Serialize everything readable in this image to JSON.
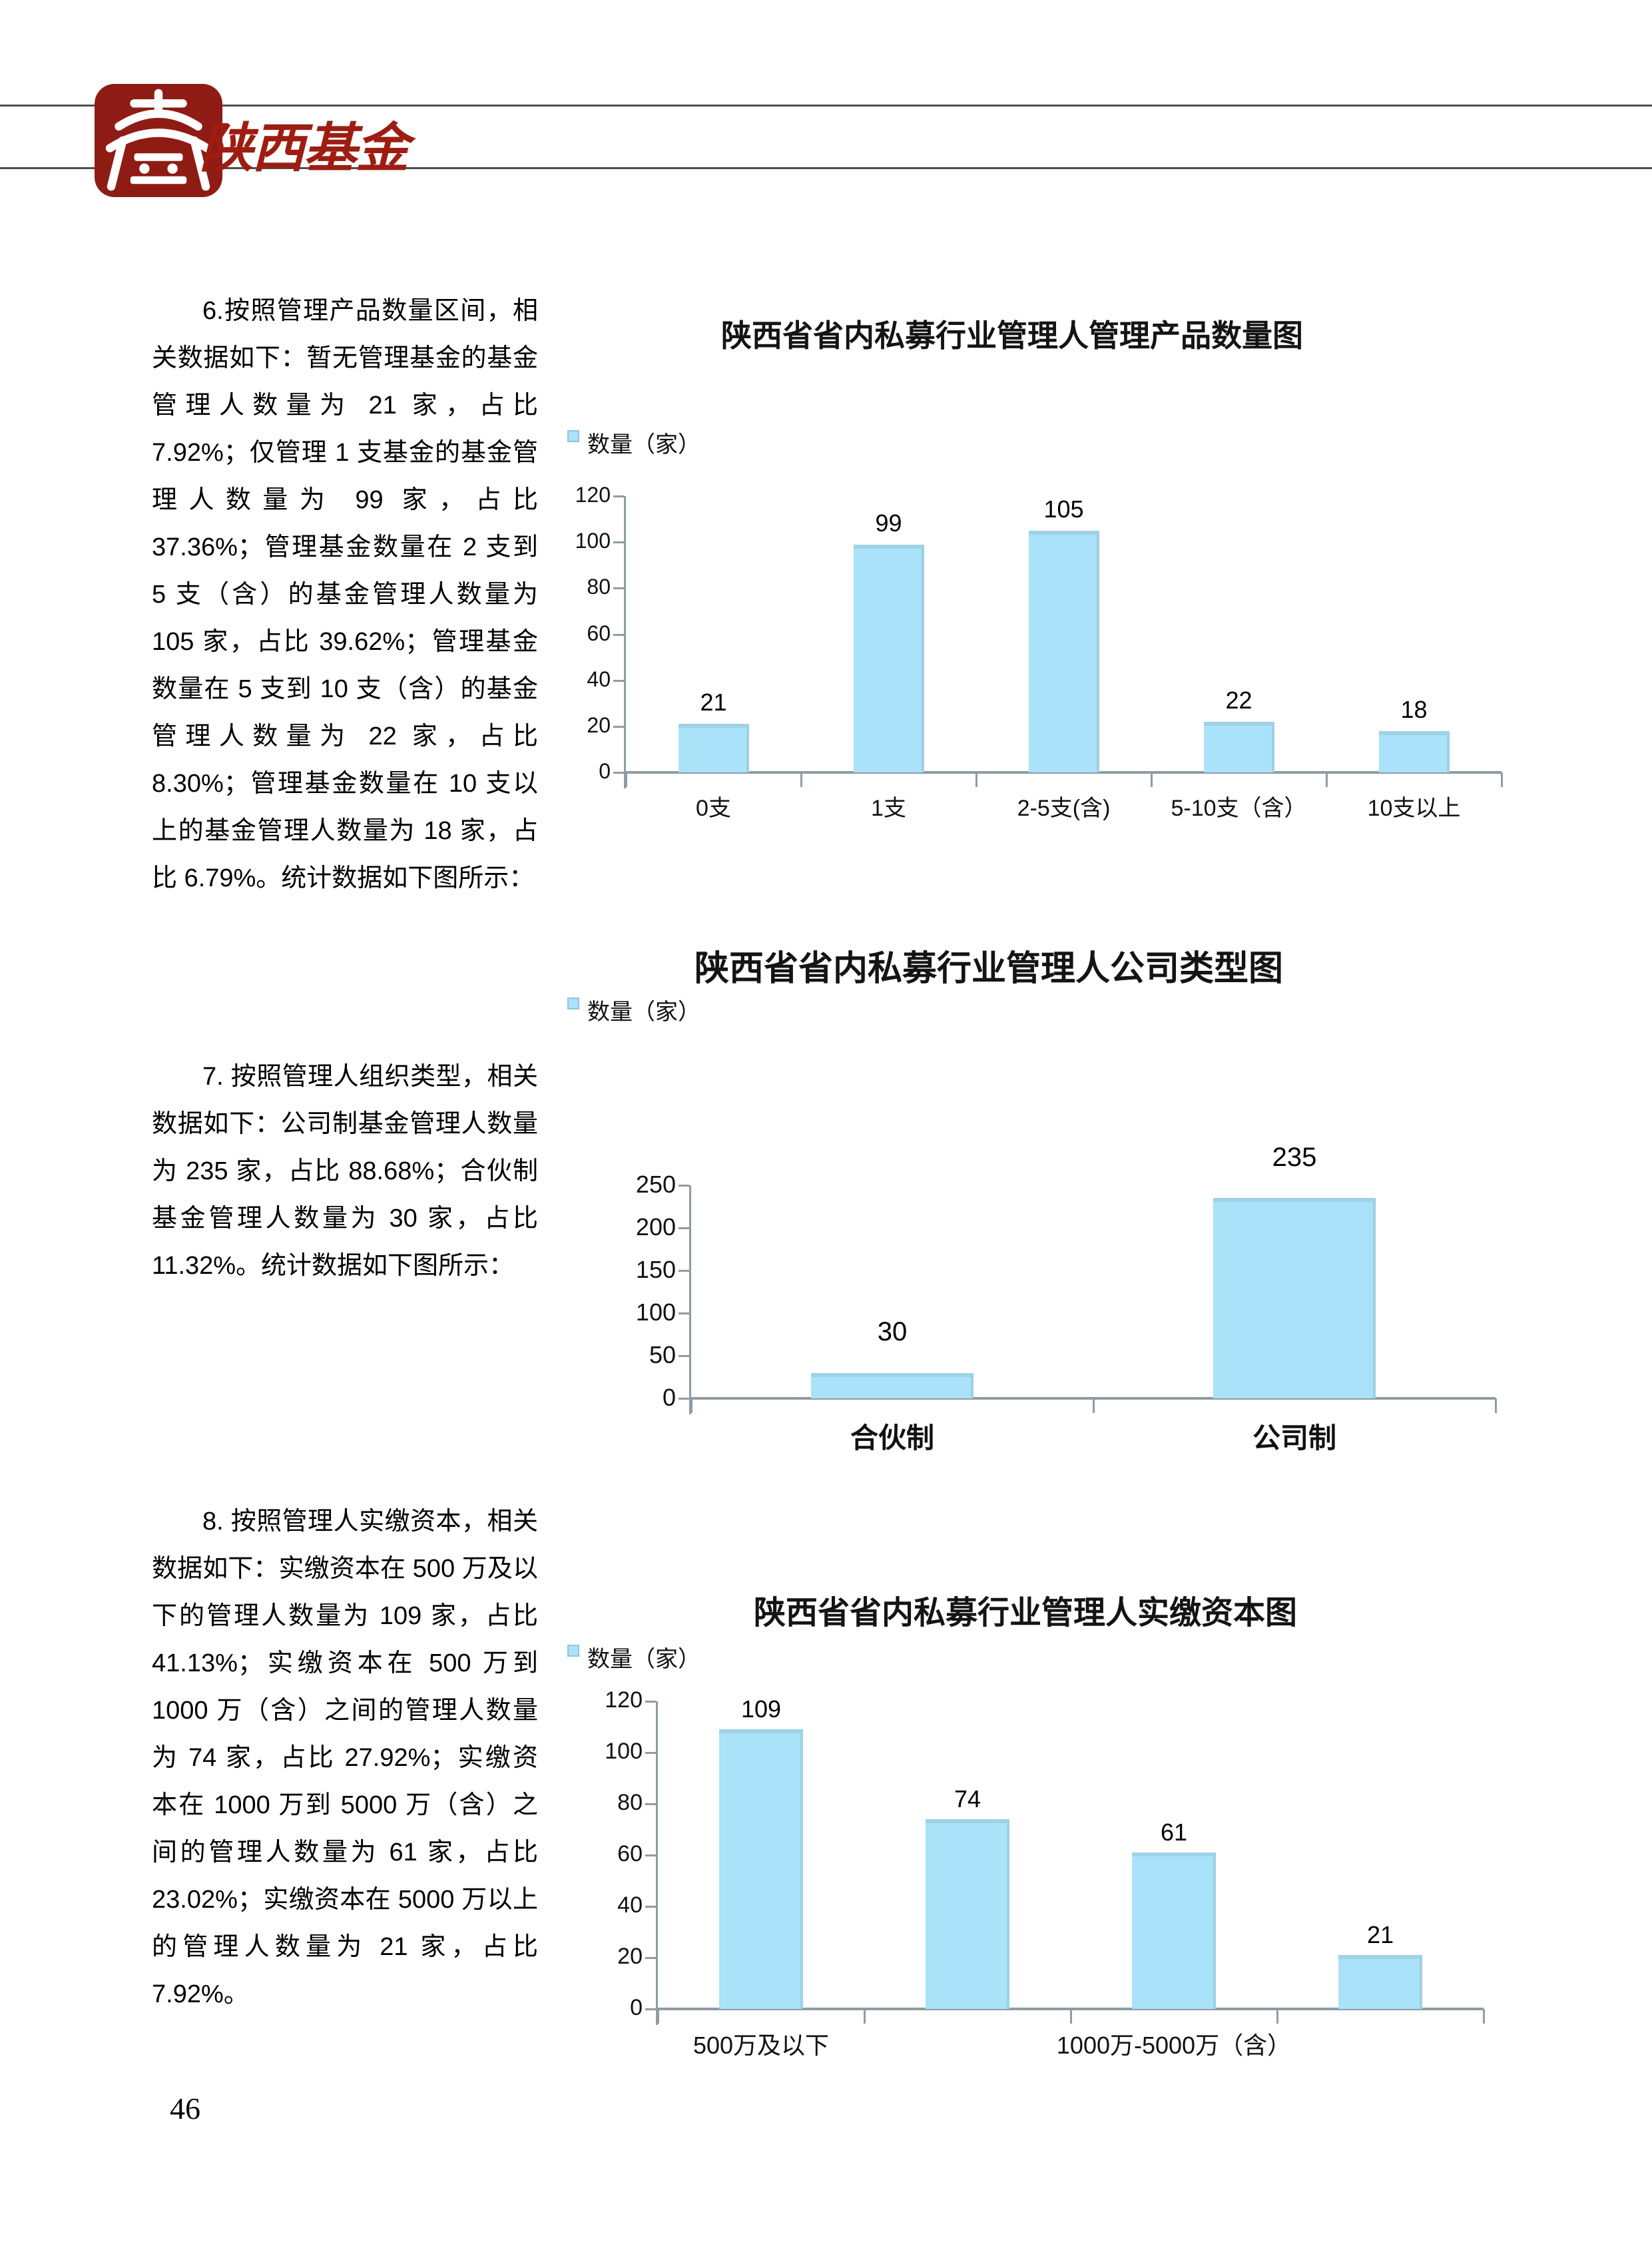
{
  "header": {
    "brand": "陕西基金"
  },
  "page_number": "46",
  "paragraphs": [
    {
      "text": "6.按照管理产品数量区间，相关数据如下：暂无管理基金的基金管理人数量为 21 家，占比 7.92%；仅管理 1 支基金的基金管理人数量为 99 家，占比 37.36%；管理基金数量在 2 支到 5 支（含）的基金管理人数量为 105 家，占比 39.62%；管理基金数量在 5 支到 10 支（含）的基金管理人数量为 22 家，占比 8.30%；管理基金数量在 10 支以上的基金管理人数量为 18 家，占比 6.79%。统计数据如下图所示："
    },
    {
      "text": "7. 按照管理人组织类型，相关数据如下：公司制基金管理人数量为 235 家，占比 88.68%；合伙制基金管理人数量为 30 家，占比 11.32%。统计数据如下图所示："
    },
    {
      "text": "8. 按照管理人实缴资本，相关数据如下：实缴资本在 500 万及以下的管理人数量为 109 家，占比 41.13%；实缴资本在 500 万到 1000 万（含）之间的管理人数量为 74 家，占比 27.92%；实缴资本在 1000 万到 5000 万（含）之间的管理人数量为 61 家，占比 23.02%；实缴资本在 5000 万以上的管理人数量为 21 家，占比 7.92%。"
    }
  ],
  "chart_data": [
    {
      "type": "bar",
      "title": "陕西省省内私募行业管理人管理产品数量图",
      "legend": "数量（家）",
      "categories": [
        "0支",
        "1支",
        "2-5支(含)",
        "5-10支（含）",
        "10支以上"
      ],
      "values": [
        21,
        99,
        105,
        22,
        18
      ],
      "ylabel": "数量（家）",
      "ylim": [
        0,
        120
      ],
      "ystep": 20,
      "grid": false,
      "legend_position": "top-left",
      "bar_color": "#a9e2f9"
    },
    {
      "type": "bar",
      "title": "陕西省省内私募行业管理人公司类型图",
      "legend": "数量（家）",
      "categories": [
        "合伙制",
        "公司制"
      ],
      "values": [
        30,
        235
      ],
      "ylabel": "数量（家）",
      "ylim": [
        0,
        250
      ],
      "ystep": 50,
      "grid": false,
      "legend_position": "top-left",
      "bar_color": "#a9e2f9"
    },
    {
      "type": "bar",
      "title": "陕西省省内私募行业管理人实缴资本图",
      "legend": "数量（家）",
      "categories": [
        "500万及以下",
        "",
        "1000万-5000万（含）",
        ""
      ],
      "values": [
        109,
        74,
        61,
        21
      ],
      "ylabel": "数量（家）",
      "ylim": [
        0,
        120
      ],
      "ystep": 20,
      "grid": false,
      "legend_position": "top-left",
      "bar_color": "#a9e2f9"
    }
  ]
}
